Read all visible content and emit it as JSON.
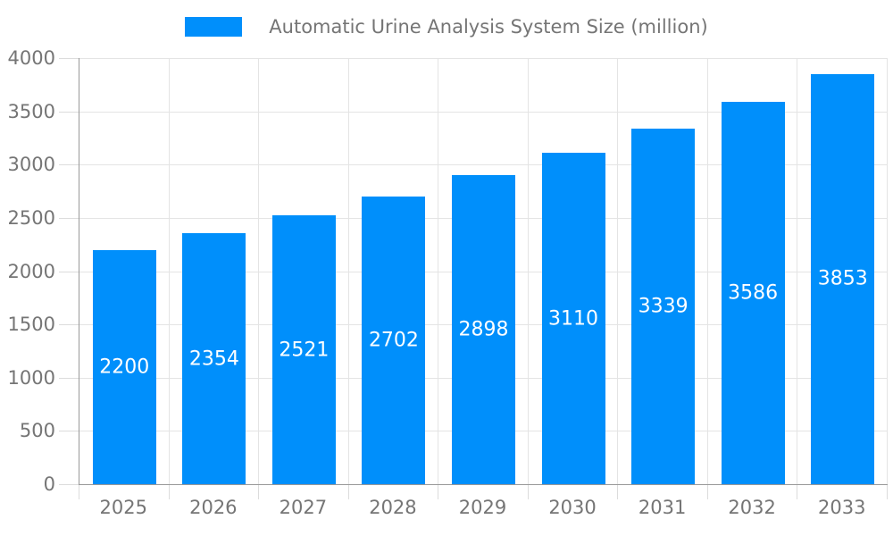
{
  "chart": {
    "colors": {
      "bar": "#008FFB",
      "grid": "#E4E4E4",
      "tick": "#DCDCDC",
      "axis": "#999999",
      "tick_label": "#757575",
      "legend_text": "#757575",
      "value_label": "#FFFFFF",
      "background": "#FFFFFF"
    }
  },
  "chart_data": {
    "type": "bar",
    "title": "Automatic Urine Analysis System Size (million)",
    "legend": [
      "Automatic Urine Analysis System Size (million)"
    ],
    "legend_position": "top",
    "categories": [
      "2025",
      "2026",
      "2027",
      "2028",
      "2029",
      "2030",
      "2031",
      "2032",
      "2033"
    ],
    "values": [
      2200,
      2354,
      2521,
      2702,
      2898,
      3110,
      3339,
      3586,
      3853
    ],
    "xlabel": "",
    "ylabel": "",
    "ylim": [
      0,
      4000
    ],
    "ytick_step": 500,
    "ytick_labels": [
      "0",
      "500",
      "1000",
      "1500",
      "2000",
      "2500",
      "3000",
      "3500",
      "4000"
    ],
    "grid": true,
    "value_labels": "inside-center"
  }
}
